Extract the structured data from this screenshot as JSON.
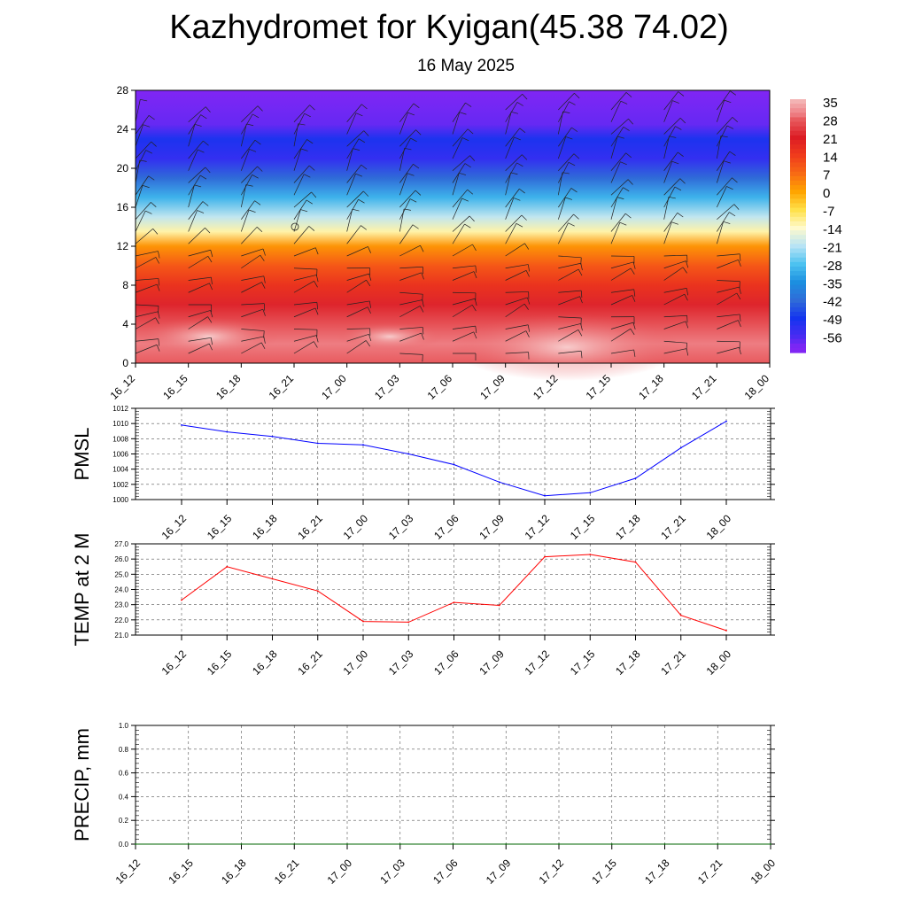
{
  "title": "Kazhydromet for Kyigan(45.38 74.02)",
  "subtitle": "16 May 2025",
  "chart_data": [
    {
      "type": "heatmap",
      "name": "temperature-profile",
      "x_ticks": [
        "16_12",
        "16_15",
        "16_18",
        "16_21",
        "17_00",
        "17_03",
        "17_06",
        "17_09",
        "17_12",
        "17_15",
        "17_18",
        "17_21",
        "18_00"
      ],
      "y_ticks": [
        0,
        4,
        8,
        12,
        16,
        20,
        24,
        28
      ],
      "ylim": [
        0,
        28
      ],
      "colorbar_labels": [
        "35",
        "28",
        "21",
        "14",
        "7",
        "0",
        "-7",
        "-14",
        "-21",
        "-28",
        "-35",
        "-42",
        "-49",
        "-56"
      ],
      "legend_position": "right",
      "profile": [
        {
          "z": 0,
          "t": 28
        },
        {
          "z": 2,
          "t": 30
        },
        {
          "z": 4,
          "t": 27
        },
        {
          "z": 6,
          "t": 22
        },
        {
          "z": 8,
          "t": 16
        },
        {
          "z": 10,
          "t": 10
        },
        {
          "z": 12,
          "t": 2
        },
        {
          "z": 13.5,
          "t": -12
        },
        {
          "z": 15,
          "t": -20
        },
        {
          "z": 17,
          "t": -30
        },
        {
          "z": 19,
          "t": -42
        },
        {
          "z": 21,
          "t": -53
        },
        {
          "z": 23,
          "t": -50
        },
        {
          "z": 24.5,
          "t": -58
        },
        {
          "z": 28,
          "t": -60
        }
      ],
      "colors": {
        "c35": "#f3b3b3",
        "c30": "#ee7d82",
        "c28": "#e85a5e",
        "c21": "#dc1c24",
        "c14": "#f03c1c",
        "c7": "#f86b14",
        "c0": "#ffa500",
        "cm7": "#ffe14a",
        "cm14": "#fffacd",
        "cm21": "#b7e3f5",
        "cm28": "#4cc2f0",
        "cm35": "#1c8fe0",
        "cm42": "#2f6bd8",
        "cm49": "#1434ef",
        "cm56": "#4b2bf2",
        "cm60": "#8026f4"
      },
      "grid": false
    },
    {
      "type": "line",
      "name": "pmsl",
      "ylabel": "PMSL",
      "categories": [
        "16_12",
        "16_15",
        "16_18",
        "16_21",
        "17_00",
        "17_03",
        "17_06",
        "17_09",
        "17_12",
        "17_15",
        "17_18",
        "17_21",
        "18_00"
      ],
      "values": [
        1009.8,
        1008.9,
        1008.3,
        1007.4,
        1007.2,
        1006.0,
        1004.6,
        1002.3,
        1000.5,
        1000.9,
        1002.8,
        1006.8,
        1010.3
      ],
      "ylim": [
        1000,
        1012
      ],
      "y_ticks": [
        "1000",
        "1002",
        "1004",
        "1006",
        "1008",
        "1010",
        "1012"
      ],
      "color": "#0000ff",
      "grid": true
    },
    {
      "type": "line",
      "name": "temp-2m",
      "ylabel": "TEMP at 2 M",
      "categories": [
        "16_12",
        "16_15",
        "16_18",
        "16_21",
        "17_00",
        "17_03",
        "17_06",
        "17_09",
        "17_12",
        "17_15",
        "17_18",
        "17_21",
        "18_00"
      ],
      "values": [
        23.3,
        25.5,
        24.7,
        23.9,
        21.9,
        21.85,
        23.15,
        22.95,
        26.15,
        26.3,
        25.8,
        22.3,
        21.3
      ],
      "ylim": [
        21,
        27
      ],
      "y_ticks": [
        "21.0",
        "22.0",
        "23.0",
        "24.0",
        "25.0",
        "26.0",
        "27.0"
      ],
      "color": "#ff0000",
      "grid": true
    },
    {
      "type": "line",
      "name": "precip",
      "ylabel": "PRECIP, mm",
      "categories": [
        "16_12",
        "16_15",
        "16_18",
        "16_21",
        "17_00",
        "17_03",
        "17_06",
        "17_09",
        "17_12",
        "17_15",
        "17_18",
        "17_21",
        "18_00"
      ],
      "values": [
        0,
        0,
        0,
        0,
        0,
        0,
        0,
        0,
        0,
        0,
        0,
        0,
        0
      ],
      "ylim": [
        0,
        1
      ],
      "y_ticks": [
        "0.0",
        "0.2",
        "0.4",
        "0.6",
        "0.8",
        "1.0"
      ],
      "color": "#006400",
      "grid": true
    }
  ]
}
